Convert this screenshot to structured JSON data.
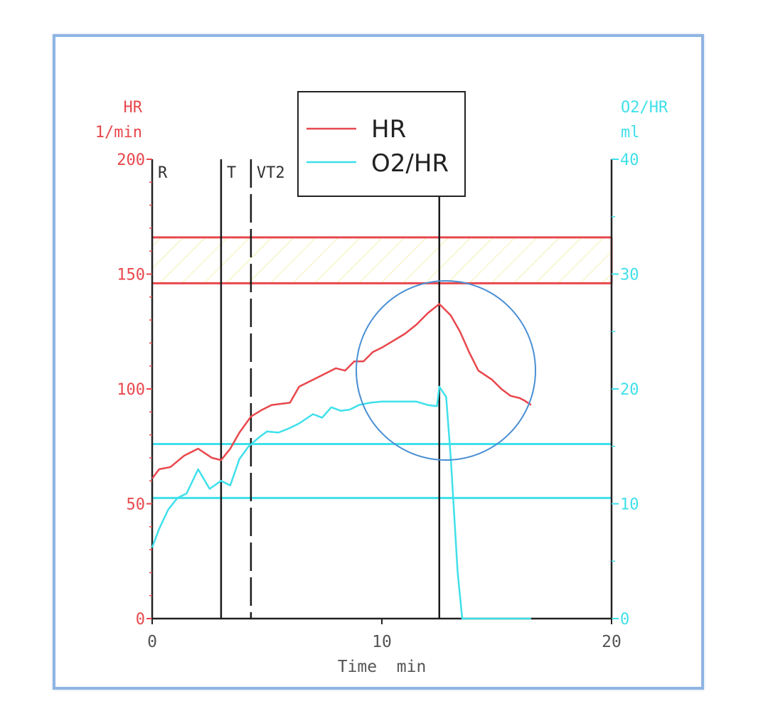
{
  "chart_data": {
    "type": "line",
    "colors": {
      "hr": "#e8474c",
      "o2hr": "#3fe0ea",
      "marker": "#1a1a1a",
      "circle": "#4a8fd4",
      "hatch": "#f2f2a0",
      "frame": "#8fb4e3"
    },
    "left_axis": {
      "label_line1": "HR",
      "label_line2": "1/min",
      "range": [
        0,
        200
      ],
      "ticks": [
        0,
        50,
        100,
        150,
        200
      ]
    },
    "right_axis": {
      "label_line1": "O2/HR",
      "label_line2": "ml",
      "range": [
        0,
        40
      ],
      "ticks": [
        0,
        10,
        20,
        30,
        40
      ]
    },
    "x_axis": {
      "label": "Time  min",
      "range": [
        0,
        20
      ],
      "ticks": [
        0,
        10,
        20
      ]
    },
    "legend": {
      "position": "top-center",
      "items": [
        {
          "label": "HR",
          "series": "hr"
        },
        {
          "label": "O2/HR",
          "series": "o2hr"
        }
      ]
    },
    "markers": [
      {
        "label": "R",
        "x": 0,
        "style": "solid"
      },
      {
        "label": "T",
        "x": 3,
        "style": "solid"
      },
      {
        "label": "VT2",
        "x": 4.3,
        "style": "dashed"
      },
      {
        "label": "",
        "x": 12.5,
        "style": "solid"
      }
    ],
    "hr_target_band": [
      146,
      166
    ],
    "o2hr_reference_band": [
      10.5,
      15.2
    ],
    "series": [
      {
        "name": "HR",
        "key": "hr",
        "axis": "left",
        "x": [
          0,
          0.3,
          0.8,
          1.4,
          2.0,
          2.6,
          3.0,
          3.4,
          3.8,
          4.3,
          4.8,
          5.2,
          6.0,
          6.4,
          7.0,
          7.4,
          8.0,
          8.4,
          8.8,
          9.2,
          9.6,
          10.0,
          10.5,
          11.0,
          11.5,
          12.0,
          12.5,
          13.0,
          13.4,
          13.8,
          14.2,
          14.8,
          15.2,
          15.6,
          16.0,
          16.2,
          16.5
        ],
        "y": [
          61,
          65,
          66,
          71,
          74,
          70,
          69,
          74,
          81,
          88,
          91,
          93,
          94,
          101,
          104,
          106,
          109,
          108,
          112,
          112,
          116,
          118,
          121,
          124,
          128,
          133,
          137,
          132,
          125,
          116,
          108,
          104,
          100,
          97,
          96,
          95,
          93
        ]
      },
      {
        "name": "O2/HR",
        "key": "o2hr",
        "axis": "right",
        "x": [
          0,
          0.3,
          0.7,
          1.1,
          1.5,
          2.0,
          2.5,
          3.0,
          3.4,
          3.8,
          4.2,
          4.6,
          5.0,
          5.5,
          6.0,
          6.4,
          7.0,
          7.4,
          7.8,
          8.2,
          8.6,
          9.0,
          9.5,
          10.0,
          10.5,
          11.0,
          11.5,
          12.0,
          12.4,
          12.5,
          12.8,
          13.0,
          13.3,
          13.5,
          14.0,
          15.0,
          16.0,
          16.5
        ],
        "y": [
          6.2,
          7.8,
          9.5,
          10.5,
          10.9,
          13.0,
          11.3,
          12.0,
          11.6,
          13.9,
          15.0,
          15.7,
          16.3,
          16.2,
          16.6,
          17.0,
          17.8,
          17.5,
          18.4,
          18.1,
          18.2,
          18.6,
          18.8,
          18.9,
          18.9,
          18.9,
          18.9,
          18.6,
          18.5,
          20.2,
          19.3,
          14.0,
          4.0,
          0,
          0,
          0,
          0,
          0
        ]
      }
    ]
  }
}
